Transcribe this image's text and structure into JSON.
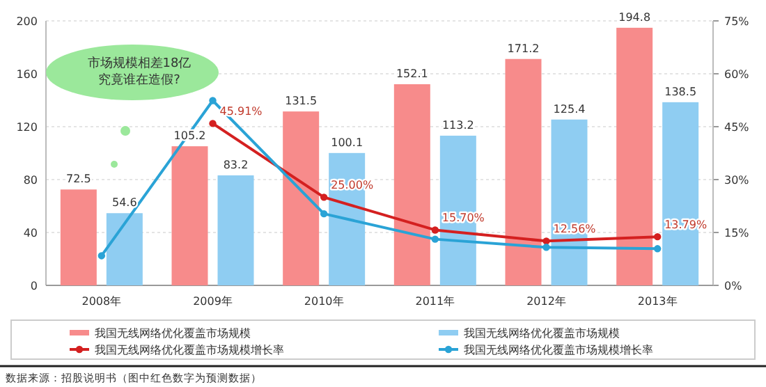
{
  "chart_data": {
    "type": "bar",
    "categories": [
      "2008年",
      "2009年",
      "2010年",
      "2011年",
      "2012年",
      "2013年"
    ],
    "series": [
      {
        "name": "我国无线网络优化覆盖市场规模",
        "color": "#f78b8b",
        "values": [
          72.5,
          105.2,
          131.5,
          152.1,
          171.2,
          194.8
        ],
        "value_labels": [
          "72.5",
          "105.2",
          "131.5",
          "152.1",
          "171.2",
          "194.8"
        ]
      },
      {
        "name": "我国无线网络优化覆盖市场规模",
        "color": "#8fcdf2",
        "values": [
          54.6,
          83.2,
          100.1,
          113.2,
          125.4,
          138.5
        ],
        "value_labels": [
          "54.6",
          "83.2",
          "100.1",
          "113.2",
          "125.4",
          "138.5"
        ]
      },
      {
        "type": "line",
        "axis": "y2",
        "name": "我国无线网络优化覆盖市场规模增长率",
        "color": "#d42020",
        "values": [
          null,
          45.91,
          25.0,
          15.7,
          12.56,
          13.79
        ],
        "value_labels": [
          null,
          "45.91%",
          "25.00%",
          "15.70%",
          "12.56%",
          "13.79%"
        ]
      },
      {
        "type": "line",
        "axis": "y2",
        "name": "我国无线网络优化覆盖市场规模增长率",
        "color": "#2aa3d6",
        "values": [
          8.4,
          52.4,
          20.3,
          13.1,
          10.8,
          10.4
        ]
      }
    ],
    "ylim": [
      0,
      200
    ],
    "yticks": [
      0,
      40,
      80,
      120,
      160,
      200
    ],
    "y2lim": [
      0,
      75
    ],
    "y2ticks": [
      {
        "value": 0,
        "label": "0%"
      },
      {
        "value": 15,
        "label": "15%"
      },
      {
        "value": 30,
        "label": "30%"
      },
      {
        "value": 45,
        "label": "45%"
      },
      {
        "value": 60,
        "label": "60%"
      },
      {
        "value": 75,
        "label": "75%"
      }
    ],
    "grid": "y",
    "legend": "bottom",
    "marker": "circle",
    "annotations": [
      "市场规模相差18亿",
      "究竟谁在造假?",
      "数据来源：招股说明书（图中红色数字为预测数据）"
    ]
  }
}
